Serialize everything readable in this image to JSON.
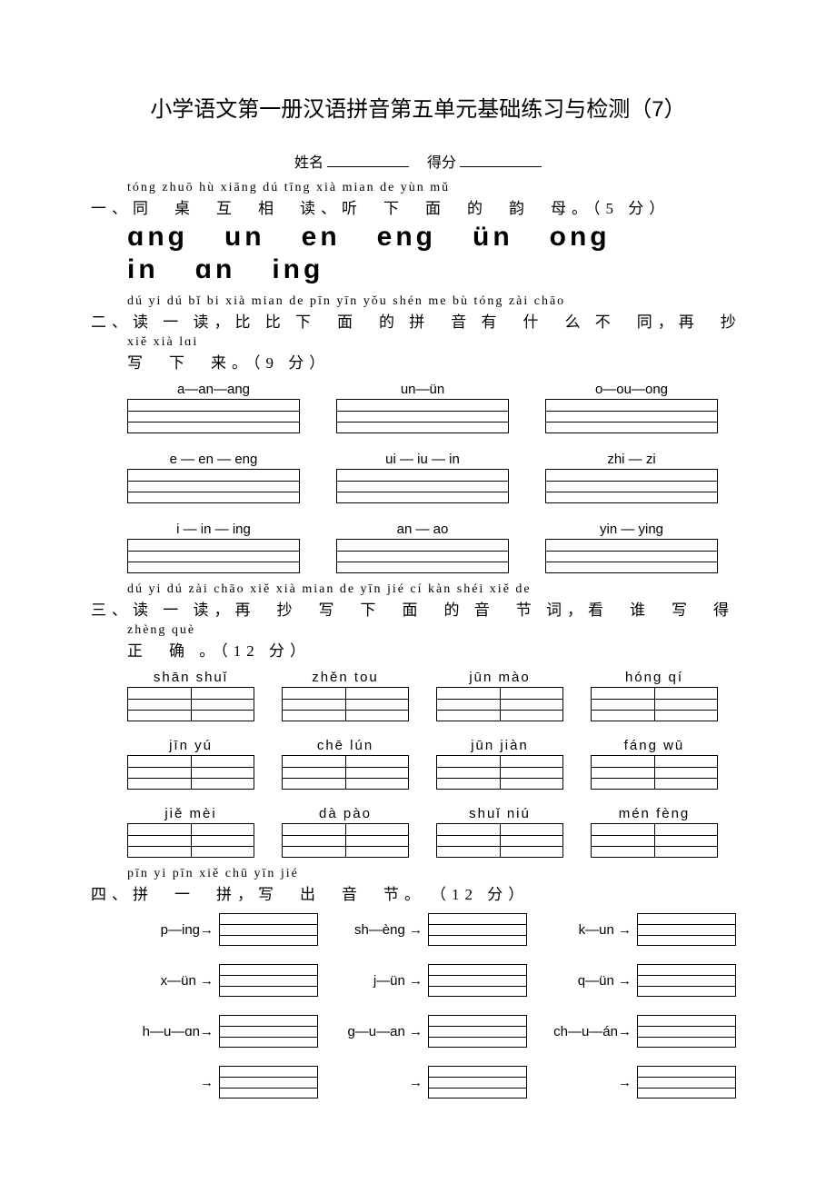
{
  "title": "小学语文第一册汉语拼音第五单元基础练习与检测（7）",
  "name_label": "姓名",
  "score_label": "得分",
  "q1": {
    "pinyin": "tóng zhuō hù xiāng dú  tīng xià  mian de yùn mǔ",
    "hanzi": "一、同　桌　互　相　读、听　下　面　的　韵　母。（5 分）",
    "vowels_row1": [
      "ɑng",
      "un",
      "en",
      "eng",
      "ün",
      "ong"
    ],
    "vowels_row2": [
      "in",
      "ɑn",
      "ing"
    ]
  },
  "q2": {
    "pinyin": "dú yi  dú  bǐ  bi xià  mian  de pīn yīn yǒu  shén  me bù  tóng zài  chāo",
    "hanzi": "二、读 一 读，比 比 下　面　的 拼　音 有　什　么 不　同，再　抄",
    "pinyin2": "xiě xià lɑi",
    "hanzi2": "写　下　来。（9 分）",
    "cells": [
      "a—an—ang",
      "un—ün",
      "o—ou—ong",
      "e — en — eng",
      "ui — iu — in",
      "zhi — zi",
      "i — in — ing",
      "an — ao",
      "yin — ying"
    ]
  },
  "q3": {
    "pinyin": "dú yi dú  zài chāo xiě xià  mian  de yīn jié cí  kàn shéi xiě  de",
    "hanzi": "三、读 一 读，再　抄　写　下　面　的 音　节 词，看　谁　写　得",
    "pinyin2": "zhèng què",
    "hanzi2": "正　确 。（12 分）",
    "words": [
      "shān shuǐ",
      "zhěn tou",
      "jūn  mào",
      "hóng qí",
      "jīn  yú",
      "chē  lún",
      "jūn  jiàn",
      "fáng wū",
      "jiě  mèi",
      "dà  pào",
      "shuǐ niú",
      "mén fèng"
    ]
  },
  "q4": {
    "pinyin": "pīn   yi pīn xiě chū yīn jié",
    "hanzi": "四、拼　一　拼，写　出　音　节。　（12 分）",
    "combos": [
      "p—ing→",
      "sh—èng →",
      "k—un →",
      "x—ün →",
      "j—ün →",
      "q—ün →",
      "h—u—ɑn→",
      "g—u—an →",
      "ch—u—án→",
      "→",
      "→",
      "→"
    ]
  }
}
